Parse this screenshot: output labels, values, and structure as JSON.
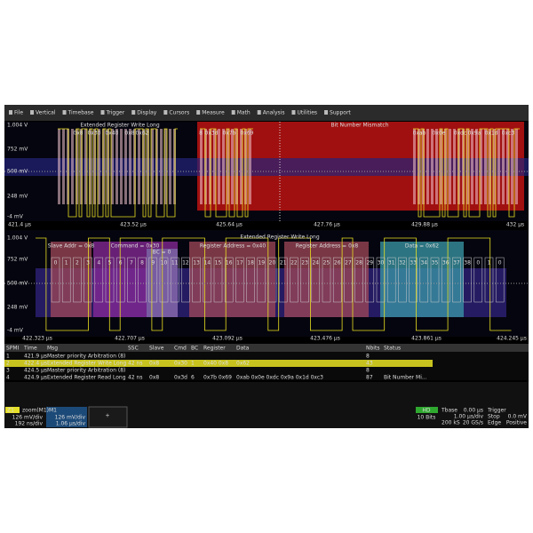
{
  "menu": [
    "File",
    "Vertical",
    "Timebase",
    "Trigger",
    "Display",
    "Cursors",
    "Measure",
    "Math",
    "Analysis",
    "Utilities",
    "Support"
  ],
  "top_plot": {
    "y_labels": [
      "1.004 V",
      "752 mV",
      "500 mV",
      "248 mV",
      "-4 mV"
    ],
    "x_labels": [
      "421.4 µs",
      "423.52 µs",
      "425.64 µs",
      "427.76 µs",
      "429.88 µs",
      "432 µs"
    ],
    "packet_title": "Extended Register Write Long",
    "error": "Bit Number Mismatch",
    "decodes": [
      "0x8",
      "0x30",
      "0x40",
      "0x8",
      "0x62",
      "8",
      "0x3d",
      "0x7b",
      "0x69",
      "0xab",
      "0x0e",
      "0xdc",
      "0x9a",
      "0x1d",
      "0xc3"
    ]
  },
  "bottom_plot": {
    "y_labels": [
      "1.004 V",
      "752 mV",
      "500 mV",
      "248 mV",
      "-4 mV"
    ],
    "x_labels": [
      "422.323 µs",
      "422.707 µs",
      "423.092 µs",
      "423.476 µs",
      "423.861 µs",
      "424.245 µs"
    ],
    "packet_title": "Extended Register Write Long",
    "fields": [
      "Slave Addr = 0x8",
      "Command = 0x30",
      "BC = 0",
      "Register Address = 0x40",
      "Register Address = 0x8",
      "Data = 0x62"
    ],
    "bits": [
      "0",
      "1",
      "2",
      "3",
      "4",
      "5",
      "6",
      "7",
      "8",
      "9",
      "10",
      "11",
      "12",
      "13",
      "14",
      "15",
      "16",
      "17",
      "18",
      "19",
      "20",
      "21",
      "22",
      "23",
      "24",
      "25",
      "26",
      "27",
      "28",
      "29",
      "30",
      "31",
      "32",
      "33",
      "34",
      "35",
      "36",
      "37",
      "38",
      "0",
      "1",
      "0"
    ]
  },
  "table": {
    "headers": [
      "SPMI",
      "Time",
      "Msg",
      "SSC",
      "Slave",
      "Cmd",
      "BC",
      "Register",
      "Data",
      "Nbits",
      "Status"
    ],
    "rows": [
      [
        "1",
        "421.9 µs",
        "Master priority Arbitration (8)",
        null,
        null,
        null,
        null,
        null,
        null,
        "8",
        null
      ],
      [
        "2",
        "422.4 µs",
        "Extended Register Write Long",
        "42 ns",
        "0x8",
        "0x30",
        "1",
        "0x40 0x8",
        "0x62",
        "43",
        null
      ],
      [
        "3",
        "424.5 µs",
        "Master priority Arbitration (8)",
        null,
        null,
        null,
        null,
        null,
        null,
        "8",
        null
      ],
      [
        "4",
        "424.9 µs",
        "Extended Register Read Long",
        "42 ns",
        "0x8",
        "0x3d",
        "6",
        "0x7b 0x69",
        "0xab 0x0e 0xdc 0x9a 0x1d 0xc3",
        "87",
        "Bit Number Mi..."
      ]
    ]
  },
  "status_bar": {
    "zoom": {
      "id": "Z1",
      "name": "zoom(M1)",
      "scale": "126 mV/div",
      "time": "192 ns/div"
    },
    "memory": {
      "id": "M1",
      "scale": "126 mV/div",
      "time": "1.06 µs/div"
    },
    "add": "+",
    "hd": {
      "label": "HD",
      "bits": "10 Bits"
    },
    "timebase": {
      "label": "Tbase",
      "delay": "0.00 µs",
      "div": "1.00 µs/div",
      "samples": "200 kS",
      "rate": "20 GS/s"
    },
    "trigger": {
      "label": "Trigger",
      "mode": "Stop",
      "level": "0.0 mV",
      "type": "Edge",
      "slope": "Positive"
    }
  }
}
